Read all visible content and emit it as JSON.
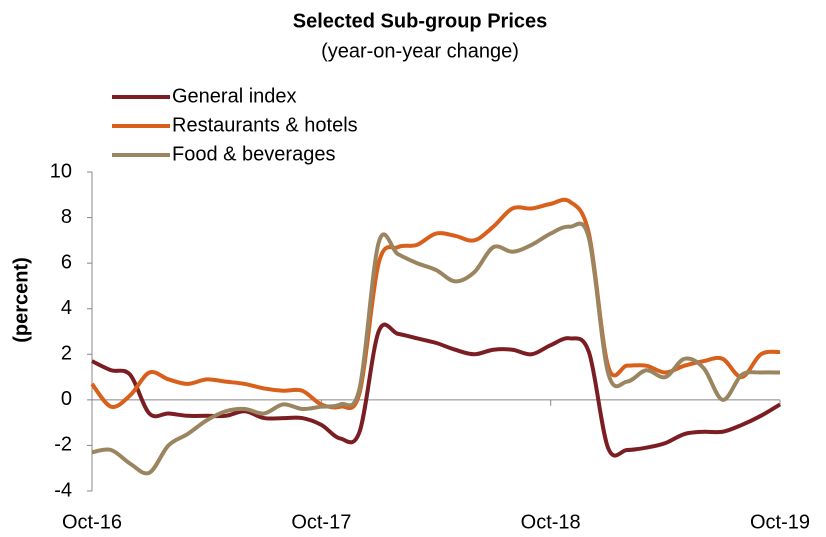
{
  "chart_data": {
    "type": "line",
    "title": "Selected Sub-group Prices",
    "subtitle": "(year-on-year change)",
    "y_label": "(percent)",
    "categories": [
      "Oct-16",
      null,
      null,
      null,
      null,
      null,
      null,
      null,
      null,
      null,
      null,
      null,
      "Oct-17",
      null,
      null,
      null,
      null,
      null,
      null,
      null,
      null,
      null,
      null,
      null,
      "Oct-18",
      null,
      null,
      null,
      null,
      null,
      null,
      null,
      null,
      null,
      null,
      null,
      "Oct-19"
    ],
    "series": [
      {
        "name": "General index",
        "color": "#7b1e23",
        "values": [
          1.7,
          1.3,
          1.1,
          -0.6,
          -0.6,
          -0.7,
          -0.7,
          -0.7,
          -0.5,
          -0.8,
          -0.8,
          -0.8,
          -1.1,
          -1.7,
          -1.4,
          3.0,
          2.9,
          2.7,
          2.5,
          2.2,
          2.0,
          2.2,
          2.2,
          2.0,
          2.4,
          2.7,
          2.1,
          -2.1,
          -2.2,
          -2.1,
          -1.9,
          -1.5,
          -1.4,
          -1.4,
          -1.1,
          -0.7,
          -0.2
        ]
      },
      {
        "name": "Restaurants & hotels",
        "color": "#d9601a",
        "values": [
          0.7,
          -0.3,
          0.2,
          1.2,
          0.9,
          0.7,
          0.9,
          0.8,
          0.7,
          0.5,
          0.4,
          0.4,
          -0.2,
          -0.3,
          0.3,
          6.0,
          6.7,
          6.8,
          7.3,
          7.2,
          7.0,
          7.6,
          8.4,
          8.4,
          8.6,
          8.7,
          7.3,
          1.5,
          1.5,
          1.5,
          1.2,
          1.5,
          1.7,
          1.8,
          1.0,
          2.0,
          2.1
        ]
      },
      {
        "name": "Food & beverages",
        "color": "#9a8560",
        "values": [
          -2.3,
          -2.2,
          -2.8,
          -3.2,
          -2.0,
          -1.5,
          -0.9,
          -0.5,
          -0.4,
          -0.6,
          -0.2,
          -0.4,
          -0.3,
          -0.2,
          0.5,
          6.9,
          6.4,
          6.0,
          5.7,
          5.2,
          5.6,
          6.7,
          6.5,
          6.8,
          7.3,
          7.6,
          7.1,
          1.2,
          0.8,
          1.3,
          1.0,
          1.8,
          1.4,
          0.0,
          1.1,
          1.2,
          1.2
        ]
      }
    ],
    "ylim": [
      -4,
      10
    ],
    "yticks": [
      -4,
      -2,
      0,
      2,
      4,
      6,
      8,
      10
    ]
  }
}
